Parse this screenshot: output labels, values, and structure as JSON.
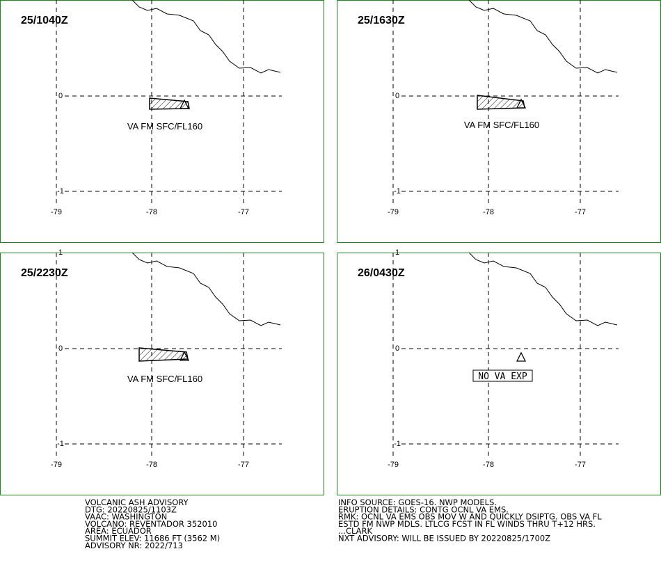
{
  "axes": {
    "lat": [
      "1",
      "0",
      "-1"
    ],
    "lon": [
      "-79",
      "-78",
      "-77"
    ]
  },
  "panels": [
    {
      "time": "25/1040Z",
      "annotation": "VA FM SFC/FL160"
    },
    {
      "time": "25/1630Z",
      "annotation": "VA FM SFC/FL160"
    },
    {
      "time": "25/2230Z",
      "annotation": "VA FM SFC/FL160"
    },
    {
      "time": "26/0430Z",
      "annotation": "NO VA EXP"
    }
  ],
  "info_left": [
    "VOLCANIC ASH ADVISORY",
    "DTG: 20220825/1103Z",
    "VAAC: WASHINGTON",
    "VOLCANO: REVENTADOR 352010",
    "AREA: ECUADOR",
    "SUMMIT ELEV: 11686 FT (3562 M)",
    "ADVISORY NR: 2022/713"
  ],
  "info_right": [
    "INFO SOURCE: GOES-16. NWP MODELS.",
    "ERUPTION DETAILS: CONTG OCNL VA EMS.",
    "RMK: OCNL VA EMS OBS MOV W AND QUICKLY DSIPTG. OBS VA FL",
    "ESTD FM NWP MDLS. LTLCG FCST IN FL WINDS THRU T+12 HRS.",
    "...CLARK",
    "NXT ADVISORY: WILL BE ISSUED BY 20220825/1700Z"
  ]
}
